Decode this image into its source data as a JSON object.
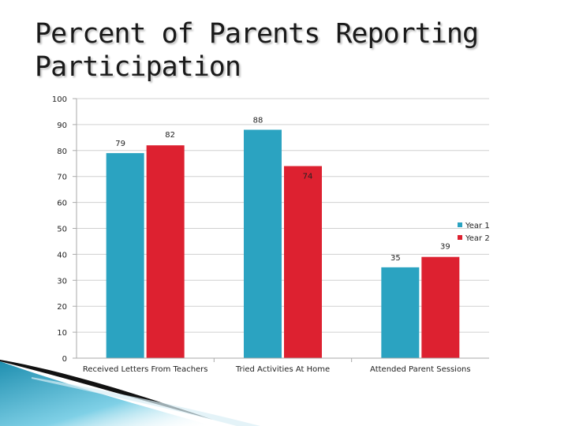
{
  "slide": {
    "title": "Percent of Parents Reporting Participation"
  },
  "chart_data": {
    "type": "bar",
    "title": "",
    "xlabel": "",
    "ylabel": "",
    "ylim": [
      0,
      100
    ],
    "yticks": [
      0,
      10,
      20,
      30,
      40,
      50,
      60,
      70,
      80,
      90,
      100
    ],
    "grid": true,
    "legend_position": "right",
    "categories": [
      "Received Letters From Teachers",
      "Tried Activities At Home",
      "Attended Parent Sessions"
    ],
    "series": [
      {
        "name": "Year 1",
        "color": "#2ba3c1",
        "values": [
          79,
          88,
          35
        ]
      },
      {
        "name": "Year 2",
        "color": "#dd2130",
        "values": [
          82,
          74,
          39
        ]
      }
    ]
  }
}
